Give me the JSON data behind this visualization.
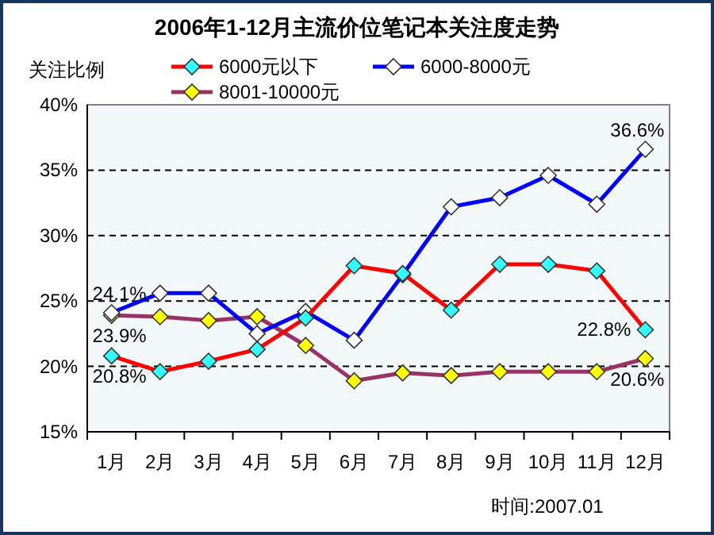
{
  "chart_data": {
    "type": "line",
    "title": "2006年1-12月主流价位笔记本关注度走势",
    "ylabel": "关注比例",
    "categories": [
      "1月",
      "2月",
      "3月",
      "4月",
      "5月",
      "6月",
      "7月",
      "8月",
      "9月",
      "10月",
      "11月",
      "12月"
    ],
    "series": [
      {
        "name": "6000元以下",
        "color": "#ff0000",
        "values": [
          20.8,
          19.6,
          20.4,
          21.3,
          23.7,
          27.7,
          27.1,
          24.3,
          27.8,
          27.8,
          27.3,
          22.8
        ]
      },
      {
        "name": "6000-8000元",
        "color": "#0000ff",
        "values": [
          24.1,
          25.6,
          25.6,
          22.5,
          24.2,
          22.0,
          27.0,
          32.2,
          32.9,
          34.6,
          32.4,
          36.6
        ]
      },
      {
        "name": "8001-10000元",
        "color": "#993366",
        "values": [
          23.9,
          23.8,
          23.5,
          23.8,
          21.6,
          18.9,
          19.5,
          19.3,
          19.6,
          19.6,
          19.6,
          20.6
        ]
      }
    ],
    "ylim": [
      15,
      40
    ],
    "yticks": [
      {
        "value": 15,
        "label": "15%"
      },
      {
        "value": 20,
        "label": "20%"
      },
      {
        "value": 25,
        "label": "25%"
      },
      {
        "value": 30,
        "label": "30%"
      },
      {
        "value": 35,
        "label": "35%"
      },
      {
        "value": 40,
        "label": "40%"
      }
    ],
    "grid": "y",
    "legend": "top",
    "marker": "diamond",
    "line_style": "solid",
    "annotations": [
      {
        "text": "24.1%",
        "x": "1月",
        "y": 24.1
      },
      {
        "text": "23.9%",
        "x": "1月",
        "y": 23.9
      },
      {
        "text": "20.8%",
        "x": "1月",
        "y": 20.8
      },
      {
        "text": "36.6%",
        "x": "12月",
        "y": 36.6
      },
      {
        "text": "22.8%",
        "x": "12月",
        "y": 22.8
      },
      {
        "text": "20.6%",
        "x": "12月",
        "y": 20.6
      },
      "时间:2007.01"
    ]
  }
}
